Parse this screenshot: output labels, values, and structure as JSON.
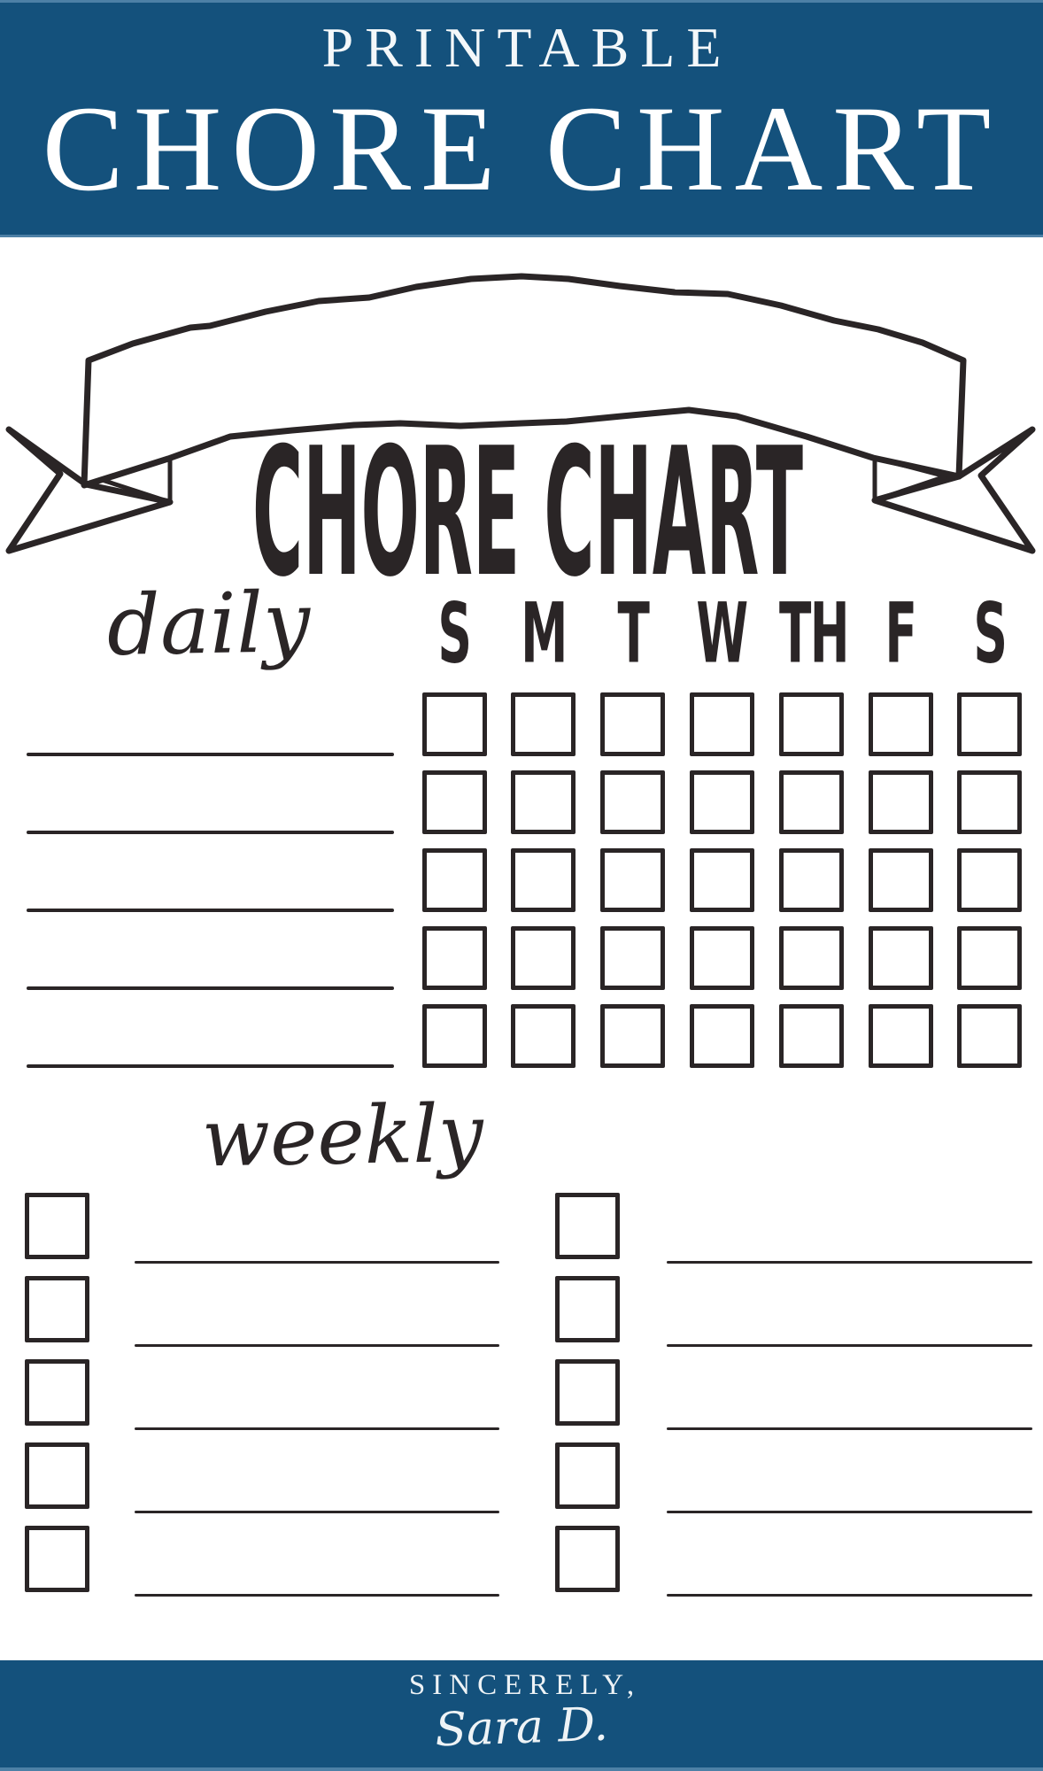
{
  "colors": {
    "header_blue": "#14517c",
    "strip_blue": "#4d80a6",
    "ink": "#2a2526",
    "paper": "#ffffff"
  },
  "header": {
    "eyebrow": "PRINTABLE",
    "title": "CHORE CHART"
  },
  "banner": {
    "title": "CHORE CHART"
  },
  "daily": {
    "label": "daily",
    "day_headers": [
      "S",
      "M",
      "T",
      "W",
      "TH",
      "F",
      "S"
    ],
    "rows": 5,
    "chore_line_count": 5
  },
  "weekly": {
    "label": "weekly",
    "column_count": 2,
    "rows_per_column": 5
  },
  "footer": {
    "signoff": "SINCERELY,",
    "signature": "Sara D."
  }
}
